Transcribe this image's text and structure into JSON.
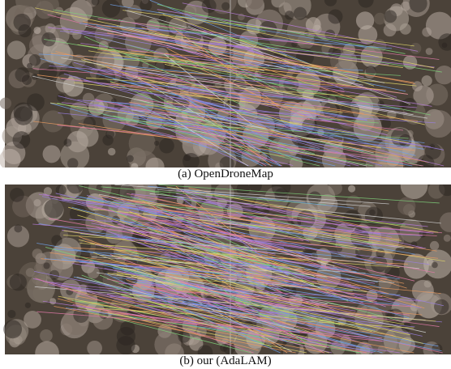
{
  "figure": {
    "panels": [
      {
        "caption": "(a) OpenDroneMap"
      },
      {
        "caption": "(b) our (AdaLAM)"
      }
    ]
  }
}
